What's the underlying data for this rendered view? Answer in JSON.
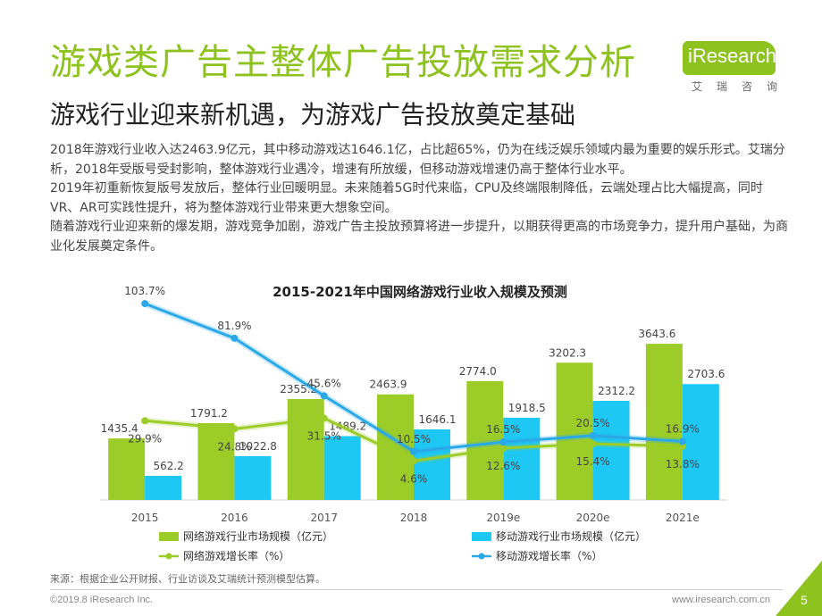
{
  "header": {
    "title": "游戏类广告主整体广告投放需求分析",
    "subtitle": "游戏行业迎来新机遇，为游戏广告投放奠定基础",
    "logo_text": "iResearch",
    "logo_cn": "艾瑞咨询"
  },
  "body": {
    "p1": "2018年游戏行业收入达2463.9亿元，其中移动游戏达1646.1亿，占比超65%，仍为在线泛娱乐领域内最为重要的娱乐形式。艾瑞分析，2018年受版号受封影响，整体游戏行业遇冷，增速有所放缓，但移动游戏增速仍高于整体行业水平。",
    "p2": "2019年初重新恢复版号发放后，整体行业回暖明显。未来随着5G时代来临，CPU及终端限制降低，云端处理占比大幅提高，同时VR、AR可实践性提升，将为整体游戏行业带来更大想象空间。",
    "p3": "随着游戏行业迎来新的爆发期，游戏竞争加剧，游戏广告主投放预算将进一步提升，以期获得更高的市场竞争力，提升用户基础，为商业化发展奠定条件。"
  },
  "chart_data": {
    "type": "bar",
    "title": "2015-2021年中国网络游戏行业收入规模及预测",
    "categories": [
      "2015",
      "2016",
      "2017",
      "2018",
      "2019e",
      "2020e",
      "2021e"
    ],
    "series": [
      {
        "name": "网络游戏行业市场规模（亿元）",
        "kind": "bar",
        "color": "#9ccc27",
        "values": [
          1435.4,
          1791.2,
          2355.2,
          2463.9,
          2774.0,
          3202.3,
          3643.6
        ],
        "labels": [
          "1435.4",
          "1791.2",
          "2355.2",
          "2463.9",
          "2774.0",
          "3202.3",
          "3643.6"
        ]
      },
      {
        "name": "移动游戏行业市场规模（亿元）",
        "kind": "bar",
        "color": "#1ec8f5",
        "values": [
          562.2,
          1022.8,
          1489.2,
          1646.1,
          1918.5,
          2312.2,
          2703.6
        ],
        "labels": [
          "562.2",
          "1022.8",
          "1489.2",
          "1646.1",
          "1918.5",
          "2312.2",
          "2703.6"
        ]
      },
      {
        "name": "网络游戏增长率（%）",
        "kind": "line",
        "color": "#9ccc27",
        "values": [
          29.9,
          24.8,
          31.5,
          4.6,
          12.6,
          15.4,
          13.8
        ],
        "labels": [
          "29.9%",
          "24.8%",
          "31.5%",
          "4.6%",
          "12.6%",
          "15.4%",
          "13.8%"
        ]
      },
      {
        "name": "移动游戏增长率（%）",
        "kind": "line",
        "color": "#2aa8e8",
        "values": [
          103.7,
          81.9,
          45.6,
          10.5,
          16.5,
          20.5,
          16.9
        ],
        "labels": [
          "103.7%",
          "81.9%",
          "45.6%",
          "10.5%",
          "16.5%",
          "20.5%",
          "16.9%"
        ]
      }
    ],
    "bar_ylim": [
      0,
      5000
    ],
    "line_ylim": [
      -20,
      115
    ],
    "legend_position": "bottom"
  },
  "footer": {
    "source": "来源：根据企业公开财报、行业访谈及艾瑞统计预测模型估算。",
    "copyright": "©2019.8 iResearch Inc.",
    "website": "www.iresearch.com.cn",
    "page": "5"
  }
}
